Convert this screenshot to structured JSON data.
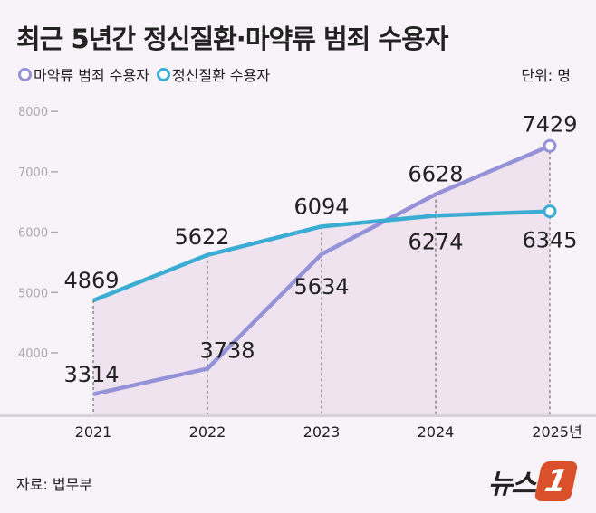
{
  "title": "최근 5년간 정신질환·마약류 범죄 수용자",
  "unit": "단위: 명",
  "source": "자료: 법무부",
  "logo": "뉴스1",
  "colors": {
    "drug": "#9592d8",
    "mental": "#3badd2",
    "fill": "#efe3f0",
    "background": "#f8f3f8"
  },
  "chart_data": {
    "type": "line",
    "categories": [
      "2021",
      "2022",
      "2023",
      "2024",
      "2025년"
    ],
    "ylim": [
      3500,
      8000
    ],
    "yticks": [
      "4000",
      "5000",
      "6000",
      "7000",
      "8000"
    ],
    "grid": false,
    "legend_placement": "top-left",
    "series": [
      {
        "name": "마약류 범죄 수용자",
        "values": [
          3314,
          3738,
          5634,
          6628,
          7429
        ]
      },
      {
        "name": "정신질환 수용자",
        "values": [
          4869,
          5622,
          6094,
          6274,
          6345
        ]
      }
    ]
  }
}
